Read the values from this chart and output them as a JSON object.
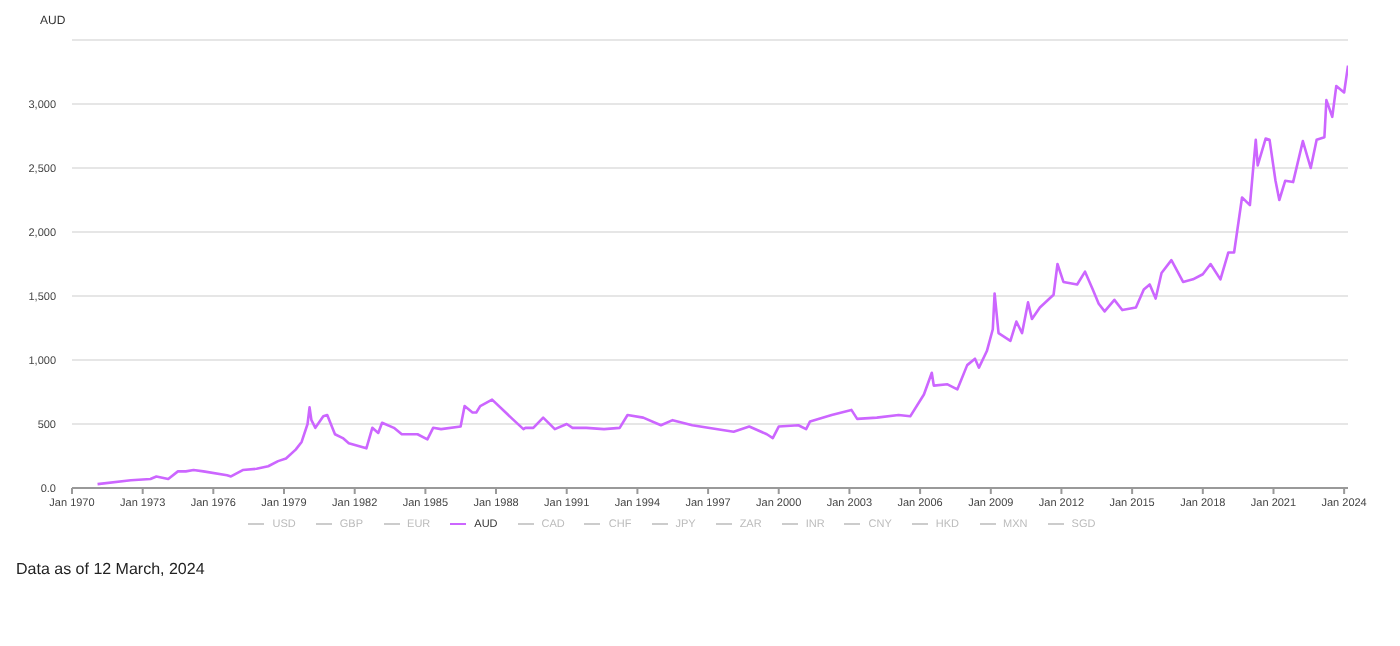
{
  "chart_data": {
    "type": "line",
    "ylabel": "AUD",
    "annotations": [
      "Data as of 12 March, 2024"
    ],
    "xlim": [
      "1970-01",
      "2024-03"
    ],
    "xticks": [
      {
        "value": "1970-01",
        "label": "Jan 1970"
      },
      {
        "value": "1973-01",
        "label": "Jan 1973"
      },
      {
        "value": "1976-01",
        "label": "Jan 1976"
      },
      {
        "value": "1979-01",
        "label": "Jan 1979"
      },
      {
        "value": "1982-01",
        "label": "Jan 1982"
      },
      {
        "value": "1985-01",
        "label": "Jan 1985"
      },
      {
        "value": "1988-01",
        "label": "Jan 1988"
      },
      {
        "value": "1991-01",
        "label": "Jan 1991"
      },
      {
        "value": "1994-01",
        "label": "Jan 1994"
      },
      {
        "value": "1997-01",
        "label": "Jan 1997"
      },
      {
        "value": "2000-01",
        "label": "Jan 2000"
      },
      {
        "value": "2003-01",
        "label": "Jan 2003"
      },
      {
        "value": "2006-01",
        "label": "Jan 2006"
      },
      {
        "value": "2009-01",
        "label": "Jan 2009"
      },
      {
        "value": "2012-01",
        "label": "Jan 2012"
      },
      {
        "value": "2015-01",
        "label": "Jan 2015"
      },
      {
        "value": "2018-01",
        "label": "Jan 2018"
      },
      {
        "value": "2021-01",
        "label": "Jan 2021"
      },
      {
        "value": "2024-01",
        "label": "Jan 2024"
      }
    ],
    "ylim": [
      0,
      3500
    ],
    "yticks": [
      {
        "value": 0,
        "label": "0.0"
      },
      {
        "value": 500,
        "label": "500"
      },
      {
        "value": 1000,
        "label": "1,000"
      },
      {
        "value": 1500,
        "label": "1,500"
      },
      {
        "value": 2000,
        "label": "2,000"
      },
      {
        "value": 2500,
        "label": "2,500"
      },
      {
        "value": 3000,
        "label": "3,000"
      },
      {
        "value": 3500,
        "label": null
      }
    ],
    "grid": "y",
    "legend": "bottom",
    "marker": "none",
    "line_style": "solid",
    "series": [
      {
        "name": "USD",
        "color": "#cccccc"
      },
      {
        "name": "GBP",
        "color": "#cccccc"
      },
      {
        "name": "EUR",
        "color": "#cccccc"
      },
      {
        "name": "AUD",
        "color": "#cc66ff",
        "x": [
          "1971-02",
          "1972-07",
          "1973-05",
          "1973-08",
          "1974-02",
          "1974-07",
          "1974-11",
          "1975-03",
          "1975-08",
          "1976-08",
          "1976-10",
          "1977-04",
          "1977-11",
          "1978-05",
          "1978-10",
          "1979-02",
          "1979-07",
          "1979-10",
          "1980-01",
          "1980-02",
          "1980-03",
          "1980-05",
          "1980-09",
          "1980-11",
          "1981-03",
          "1981-07",
          "1981-10",
          "1982-07",
          "1982-10",
          "1983-01",
          "1983-03",
          "1983-09",
          "1984-01",
          "1984-09",
          "1985-02",
          "1985-05",
          "1985-09",
          "1986-07",
          "1986-09",
          "1987-01",
          "1987-03",
          "1987-05",
          "1987-11",
          "1988-10",
          "1989-03",
          "1989-04",
          "1989-08",
          "1990-01",
          "1990-07",
          "1991-01",
          "1991-04",
          "1991-11",
          "1992-08",
          "1993-04",
          "1993-08",
          "1994-04",
          "1995-01",
          "1995-07",
          "1996-05",
          "1997-01",
          "1998-02",
          "1998-10",
          "1999-07",
          "1999-10",
          "2000-01",
          "2000-11",
          "2001-03",
          "2001-05",
          "2002-04",
          "2003-02",
          "2003-05",
          "2004-03",
          "2005-02",
          "2005-08",
          "2006-03",
          "2006-07",
          "2006-08",
          "2007-03",
          "2007-08",
          "2008-01",
          "2008-05",
          "2008-07",
          "2008-11",
          "2009-02",
          "2009-03",
          "2009-05",
          "2009-11",
          "2010-02",
          "2010-05",
          "2010-08",
          "2010-10",
          "2011-02",
          "2011-09",
          "2011-11",
          "2012-02",
          "2012-09",
          "2013-01",
          "2013-05",
          "2013-08",
          "2013-11",
          "2014-04",
          "2014-08",
          "2015-03",
          "2015-07",
          "2015-10",
          "2016-01",
          "2016-04",
          "2016-09",
          "2017-03",
          "2017-08",
          "2018-01",
          "2018-05",
          "2018-10",
          "2019-02",
          "2019-05",
          "2019-09",
          "2020-01",
          "2020-04",
          "2020-05",
          "2020-09",
          "2020-11",
          "2021-02",
          "2021-04",
          "2021-07",
          "2021-11",
          "2022-04",
          "2022-08",
          "2022-11",
          "2023-03",
          "2023-04",
          "2023-07",
          "2023-09",
          "2024-01",
          "2024-03"
        ],
        "values": [
          30,
          60,
          70,
          90,
          70,
          130,
          130,
          140,
          130,
          100,
          90,
          140,
          150,
          170,
          210,
          230,
          300,
          360,
          500,
          630,
          530,
          470,
          560,
          570,
          420,
          390,
          350,
          310,
          470,
          430,
          510,
          470,
          420,
          420,
          380,
          470,
          460,
          480,
          640,
          590,
          590,
          640,
          690,
          530,
          460,
          470,
          470,
          550,
          460,
          500,
          470,
          470,
          460,
          470,
          570,
          550,
          490,
          530,
          490,
          470,
          440,
          480,
          420,
          390,
          480,
          490,
          460,
          520,
          570,
          610,
          540,
          550,
          570,
          560,
          730,
          900,
          800,
          810,
          770,
          960,
          1010,
          940,
          1070,
          1240,
          1520,
          1210,
          1150,
          1300,
          1210,
          1450,
          1320,
          1410,
          1510,
          1750,
          1610,
          1590,
          1690,
          1550,
          1440,
          1380,
          1470,
          1390,
          1410,
          1550,
          1590,
          1480,
          1680,
          1780,
          1610,
          1630,
          1670,
          1750,
          1630,
          1840,
          1840,
          2270,
          2210,
          2720,
          2520,
          2730,
          2720,
          2400,
          2250,
          2400,
          2390,
          2710,
          2500,
          2720,
          2740,
          3030,
          2900,
          3140,
          3090,
          3300
        ]
      },
      {
        "name": "CAD",
        "color": "#cccccc"
      },
      {
        "name": "CHF",
        "color": "#cccccc"
      },
      {
        "name": "JPY",
        "color": "#cccccc"
      },
      {
        "name": "ZAR",
        "color": "#cccccc"
      },
      {
        "name": "INR",
        "color": "#cccccc"
      },
      {
        "name": "CNY",
        "color": "#cccccc"
      },
      {
        "name": "HKD",
        "color": "#cccccc"
      },
      {
        "name": "MXN",
        "color": "#cccccc"
      },
      {
        "name": "SGD",
        "color": "#cccccc"
      }
    ]
  }
}
